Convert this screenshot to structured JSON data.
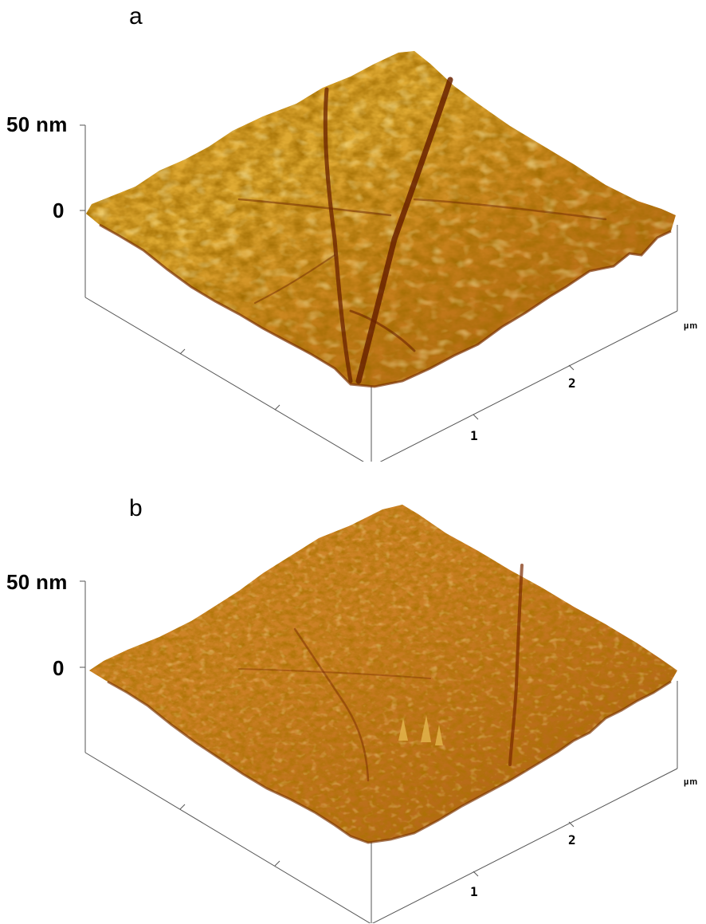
{
  "panels": [
    {
      "letter": "a",
      "z_top_label": "50 nm",
      "z_zero_label": "0",
      "x_unit": "µm",
      "x_ticks": [
        "1",
        "2"
      ],
      "surface": {
        "colors": {
          "low": "#7a2e00",
          "mid": "#c96a10",
          "high": "#e8b830",
          "peak": "#f2d060"
        },
        "texture": "coarse grains with deep cracks"
      }
    },
    {
      "letter": "b",
      "z_top_label": "50 nm",
      "z_zero_label": "0",
      "x_unit": "µm",
      "x_ticks": [
        "1",
        "2"
      ],
      "surface": {
        "colors": {
          "low": "#7a3400",
          "mid": "#c4701c",
          "high": "#dca040",
          "peak": "#e8b850"
        },
        "texture": "fine dense grains with faint cracks"
      }
    }
  ]
}
